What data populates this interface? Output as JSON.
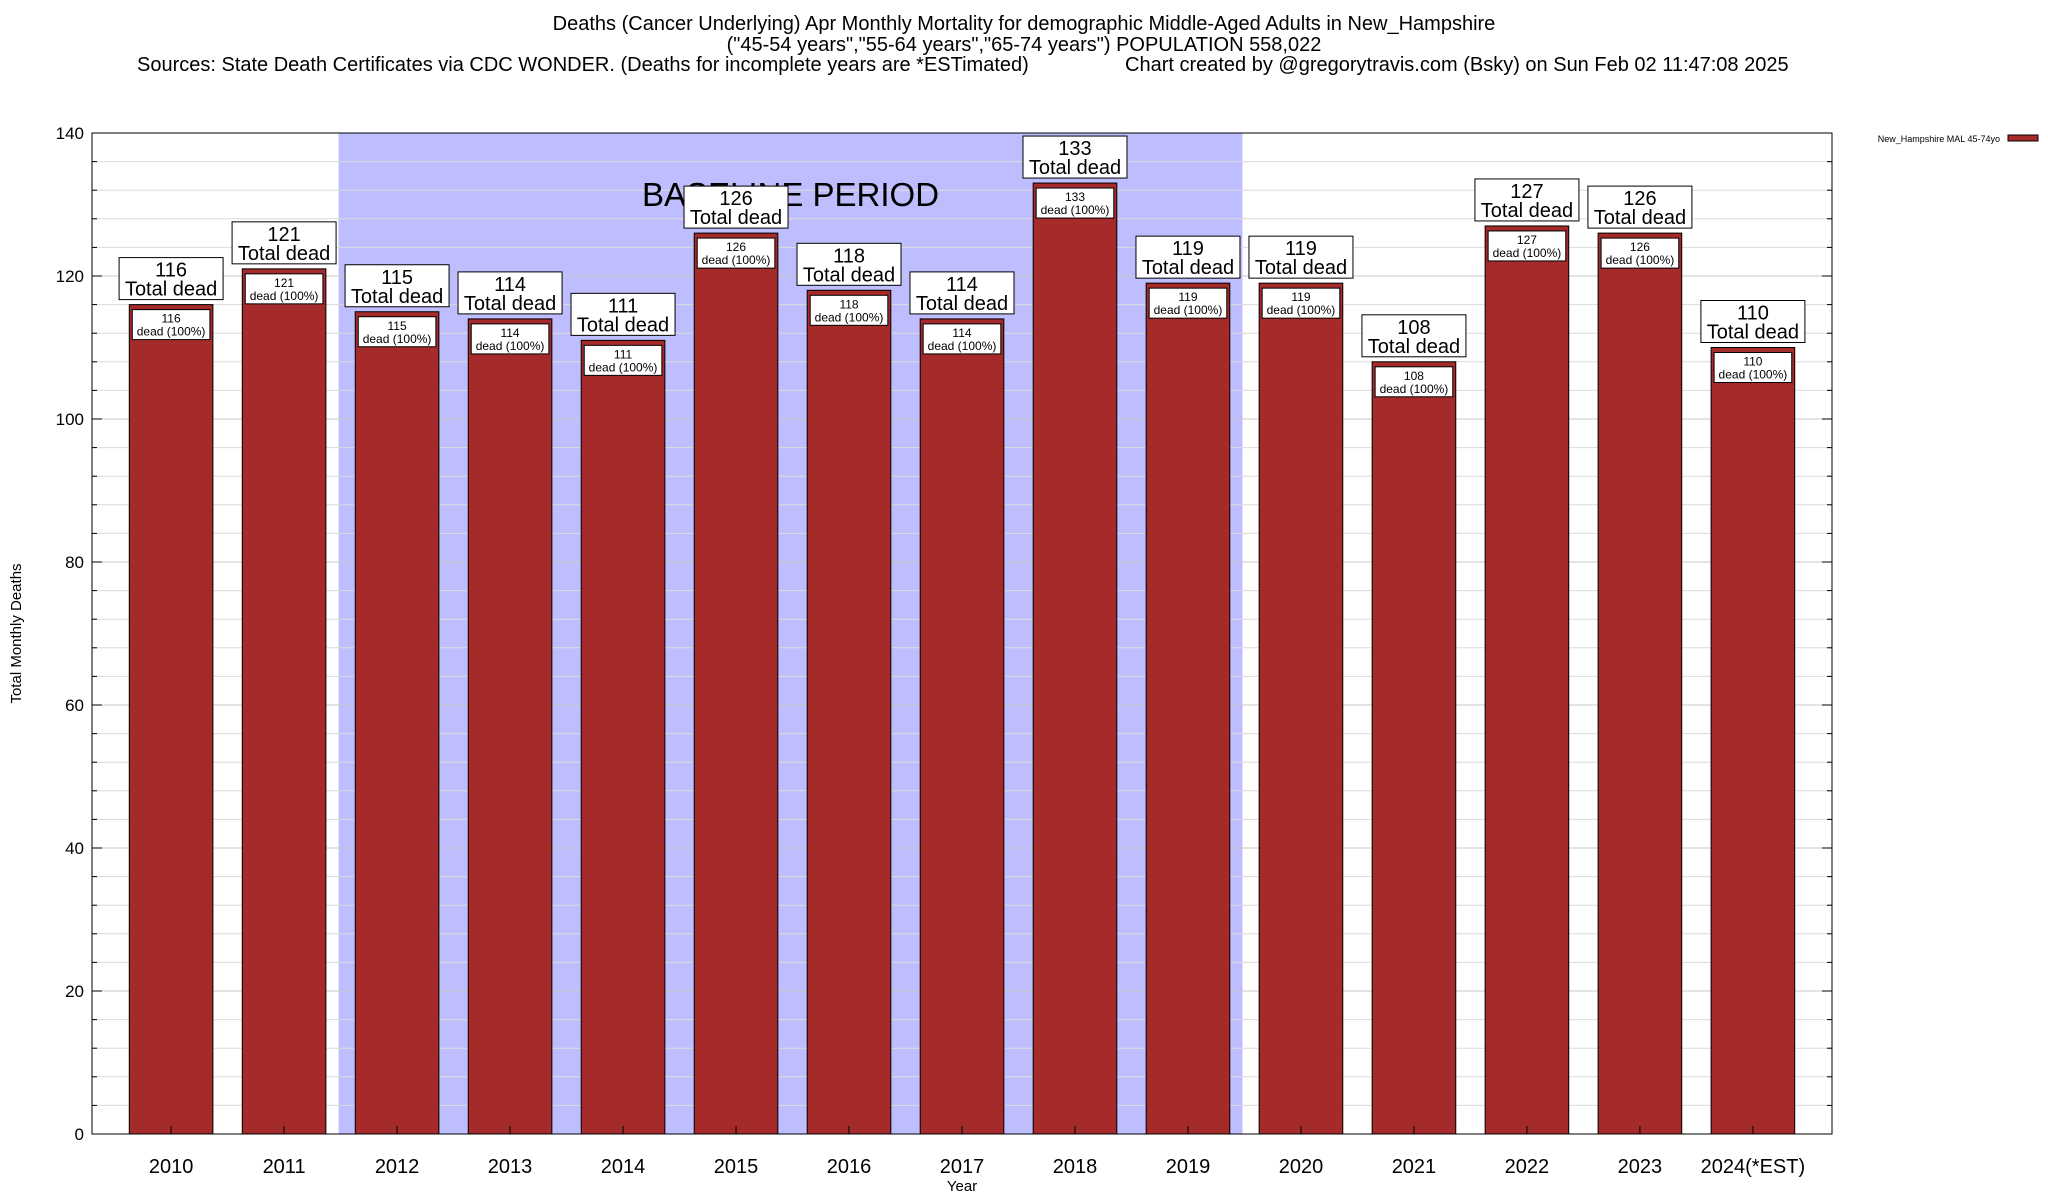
{
  "header": {
    "title_line1": "Deaths (Cancer Underlying) Apr Monthly Mortality for demographic Middle-Aged Adults in New_Hampshire",
    "title_line2": "(\"45-54 years\",\"55-64 years\",\"65-74 years\") POPULATION 558,022",
    "sources": "Sources: State Death Certificates via CDC WONDER. (Deaths for incomplete years are *ESTimated)",
    "credit": "Chart created by @gregorytravis.com (Bsky) on Sun Feb 02 11:47:08 2025"
  },
  "chart_data": {
    "type": "bar",
    "xlabel": "Year",
    "ylabel": "Total Monthly Deaths",
    "ylim": [
      0,
      140
    ],
    "yticks": [
      0,
      20,
      40,
      60,
      80,
      100,
      120,
      140
    ],
    "grid": true,
    "legend_position": "top-right",
    "categories": [
      "2010",
      "2011",
      "2012",
      "2013",
      "2014",
      "2015",
      "2016",
      "2017",
      "2018",
      "2019",
      "2020",
      "2021",
      "2022",
      "2023",
      "2024(*EST)"
    ],
    "series": [
      {
        "name": "New_Hampshire MAL 45-74yo",
        "color": "#a52a2a",
        "values": [
          116,
          121,
          115,
          114,
          111,
          126,
          118,
          114,
          133,
          119,
          119,
          108,
          127,
          126,
          110
        ]
      }
    ],
    "total_label_text": "Total dead",
    "inner_label_text": "dead (100%)",
    "baseline": {
      "label": "BASELINE PERIOD",
      "start_category": "2012",
      "end_category": "2019",
      "color": "#bebeff"
    }
  }
}
